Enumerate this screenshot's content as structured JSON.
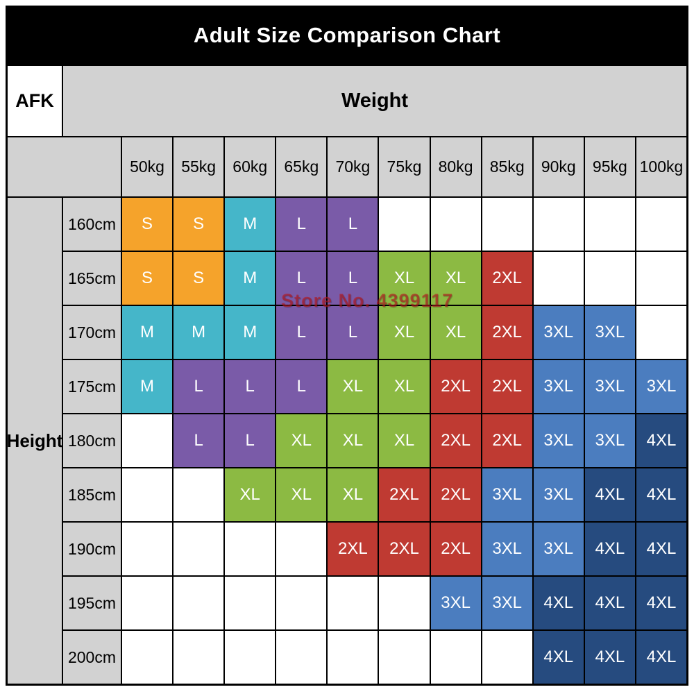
{
  "title": "Adult Size Comparison Chart",
  "corner_label": "AFK",
  "weight_header": "Weight",
  "height_header": "Height",
  "watermark": "Store No. 4399117",
  "weights": [
    "50kg",
    "55kg",
    "60kg",
    "65kg",
    "70kg",
    "75kg",
    "80kg",
    "85kg",
    "90kg",
    "95kg",
    "100kg"
  ],
  "heights": [
    "160cm",
    "165cm",
    "170cm",
    "175cm",
    "180cm",
    "185cm",
    "190cm",
    "195cm",
    "200cm"
  ],
  "size_colors": {
    "S": "#f5a32b",
    "M": "#45b6c9",
    "L": "#7a5ba8",
    "XL": "#8cba43",
    "2XL": "#bf3a32",
    "3XL": "#4b7dbf",
    "4XL": "#264b7f"
  },
  "grid": [
    [
      "S",
      "S",
      "M",
      "L",
      "L",
      "",
      "",
      "",
      "",
      "",
      ""
    ],
    [
      "S",
      "S",
      "M",
      "L",
      "L",
      "XL",
      "XL",
      "2XL",
      "",
      "",
      ""
    ],
    [
      "M",
      "M",
      "M",
      "L",
      "L",
      "XL",
      "XL",
      "2XL",
      "3XL",
      "3XL",
      ""
    ],
    [
      "M",
      "L",
      "L",
      "L",
      "XL",
      "XL",
      "2XL",
      "2XL",
      "3XL",
      "3XL",
      "3XL"
    ],
    [
      "",
      "L",
      "L",
      "XL",
      "XL",
      "XL",
      "2XL",
      "2XL",
      "3XL",
      "3XL",
      "4XL"
    ],
    [
      "",
      "",
      "XL",
      "XL",
      "XL",
      "2XL",
      "2XL",
      "3XL",
      "3XL",
      "4XL",
      "4XL"
    ],
    [
      "",
      "",
      "",
      "",
      "2XL",
      "2XL",
      "2XL",
      "3XL",
      "3XL",
      "4XL",
      "4XL"
    ],
    [
      "",
      "",
      "",
      "",
      "",
      "",
      "3XL",
      "3XL",
      "4XL",
      "4XL",
      "4XL"
    ],
    [
      "",
      "",
      "",
      "",
      "",
      "",
      "",
      "",
      "4XL",
      "4XL",
      "4XL"
    ]
  ],
  "chart_data": {
    "type": "table",
    "title": "Adult Size Comparison Chart",
    "x_header": "Weight",
    "y_header": "Height",
    "col_labels": [
      "50kg",
      "55kg",
      "60kg",
      "65kg",
      "70kg",
      "75kg",
      "80kg",
      "85kg",
      "90kg",
      "95kg",
      "100kg"
    ],
    "row_labels": [
      "160cm",
      "165cm",
      "170cm",
      "175cm",
      "180cm",
      "185cm",
      "190cm",
      "195cm",
      "200cm"
    ],
    "values": [
      [
        "S",
        "S",
        "M",
        "L",
        "L",
        "",
        "",
        "",
        "",
        "",
        ""
      ],
      [
        "S",
        "S",
        "M",
        "L",
        "L",
        "XL",
        "XL",
        "2XL",
        "",
        "",
        ""
      ],
      [
        "M",
        "M",
        "M",
        "L",
        "L",
        "XL",
        "XL",
        "2XL",
        "3XL",
        "3XL",
        ""
      ],
      [
        "M",
        "L",
        "L",
        "L",
        "XL",
        "XL",
        "2XL",
        "2XL",
        "3XL",
        "3XL",
        "3XL"
      ],
      [
        "",
        "L",
        "L",
        "XL",
        "XL",
        "XL",
        "2XL",
        "2XL",
        "3XL",
        "3XL",
        "4XL"
      ],
      [
        "",
        "",
        "XL",
        "XL",
        "XL",
        "2XL",
        "2XL",
        "3XL",
        "3XL",
        "4XL",
        "4XL"
      ],
      [
        "",
        "",
        "",
        "",
        "2XL",
        "2XL",
        "2XL",
        "3XL",
        "3XL",
        "4XL",
        "4XL"
      ],
      [
        "",
        "",
        "",
        "",
        "",
        "",
        "3XL",
        "3XL",
        "4XL",
        "4XL",
        "4XL"
      ],
      [
        "",
        "",
        "",
        "",
        "",
        "",
        "",
        "",
        "4XL",
        "4XL",
        "4XL"
      ]
    ],
    "legend": {
      "S": "#f5a32b",
      "M": "#45b6c9",
      "L": "#7a5ba8",
      "XL": "#8cba43",
      "2XL": "#bf3a32",
      "3XL": "#4b7dbf",
      "4XL": "#264b7f"
    }
  }
}
